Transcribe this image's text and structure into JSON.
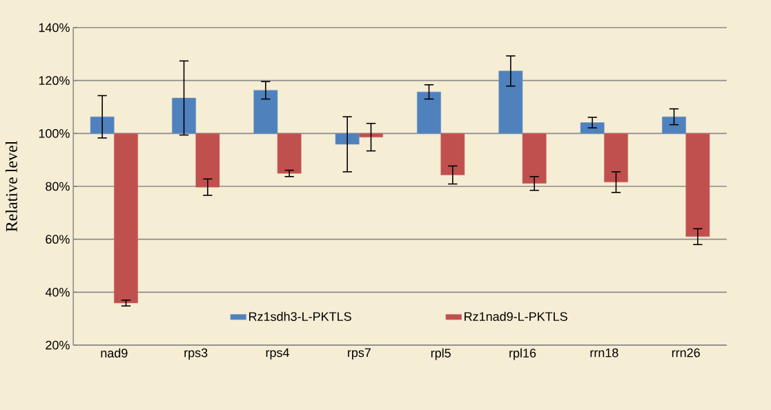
{
  "chart_data": {
    "type": "bar",
    "ylabel": "Relative level",
    "categories": [
      "nad9",
      "rps3",
      "rps4",
      "rps7",
      "rpl5",
      "rpl16",
      "rrn18",
      "rrn26"
    ],
    "series": [
      {
        "name": "Rz1sdh3-L-PKTLS",
        "color": "#4f81bd",
        "base": [
          100,
          100,
          100,
          100,
          100,
          100,
          100,
          100
        ],
        "values": [
          6.3,
          13.4,
          16.3,
          -4.1,
          15.7,
          23.6,
          4.1,
          6.3
        ],
        "errors": [
          8,
          14,
          3.3,
          10.4,
          2.7,
          5.7,
          2,
          3
        ]
      },
      {
        "name": "Rz1nad9-L-PKTLS",
        "color": "#c0504d",
        "base": [
          100,
          100,
          100,
          100,
          100,
          100,
          100,
          100
        ],
        "values": [
          -64.1,
          -20.3,
          -15.1,
          -1.4,
          -15.7,
          -18.9,
          -18.4,
          -39.0
        ],
        "errors": [
          1.1,
          3.1,
          1.2,
          5.2,
          3.4,
          2.6,
          3.9,
          3
        ]
      }
    ],
    "ylim": [
      20,
      140
    ],
    "yticks": [
      {
        "value": 20,
        "label": "20%"
      },
      {
        "value": 40,
        "label": "40%"
      },
      {
        "value": 60,
        "label": "60%"
      },
      {
        "value": 80,
        "label": "80%"
      },
      {
        "value": 100,
        "label": "100%"
      },
      {
        "value": 120,
        "label": "120%"
      },
      {
        "value": 140,
        "label": "140%"
      }
    ],
    "grid": "y",
    "legend": "bottom"
  }
}
